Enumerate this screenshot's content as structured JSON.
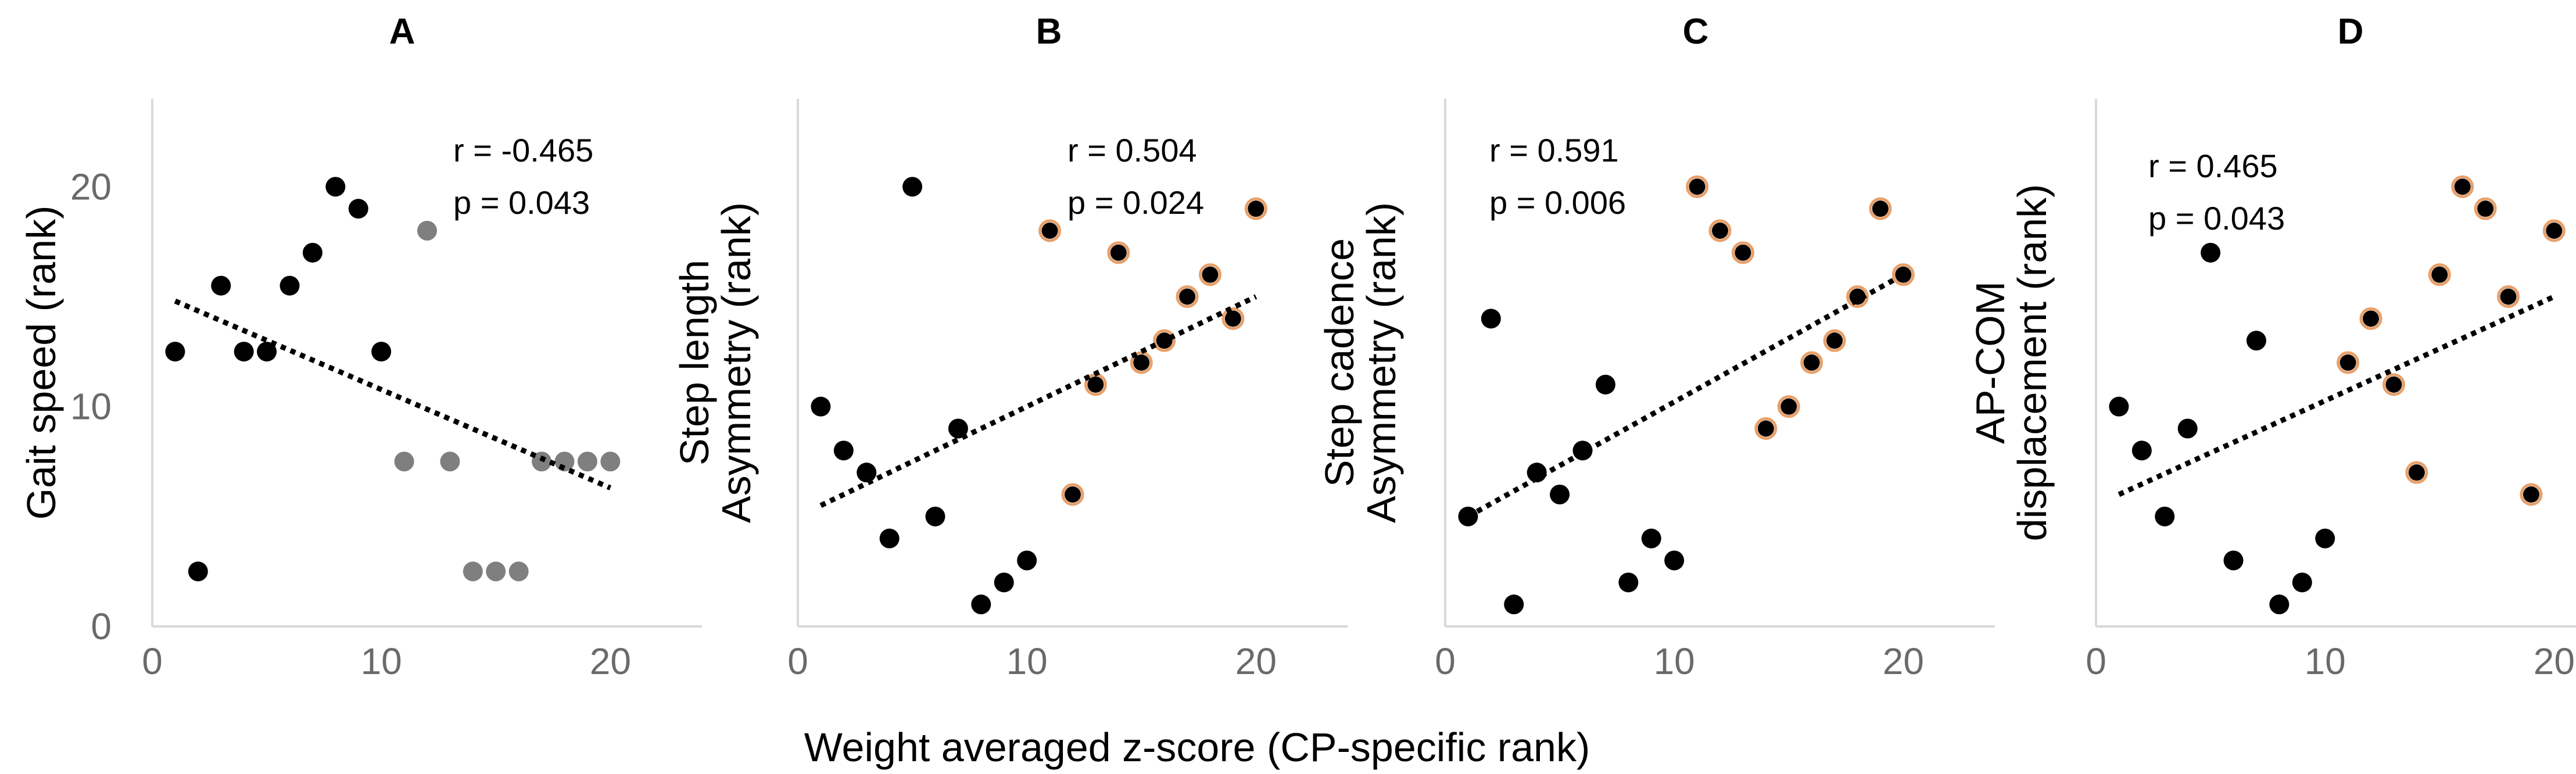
{
  "figure": {
    "shared_xlabel": "Weight averaged z-score (CP-specific rank)"
  },
  "colors": {
    "black_point": "#000000",
    "gray_point": "#7f7f7f",
    "orange_point_outline": "#e8a06a",
    "orange_point_fill": "#ffffff",
    "trendline": "#000000",
    "axis_line": "#d9d9d9",
    "tick_text": "#6a6a6a"
  },
  "chart_data": [
    {
      "type": "scatter",
      "panel_label": "A",
      "title": "",
      "ylabel_lines": [
        "Gait speed (rank)"
      ],
      "xlim": [
        0,
        24
      ],
      "ylim": [
        0,
        24
      ],
      "xticks": [
        0,
        10,
        20
      ],
      "yticks": [
        0,
        10,
        20
      ],
      "stats": [
        "r = -0.465",
        "p = 0.043"
      ],
      "trendline": {
        "x": [
          1,
          20
        ],
        "y": [
          14.8,
          6.3
        ]
      },
      "series": [
        {
          "name": "black",
          "color": "black",
          "x": [
            1,
            2,
            3,
            4,
            5,
            6,
            7,
            8,
            9,
            10
          ],
          "y": [
            12.5,
            2.5,
            15.5,
            12.5,
            12.5,
            15.5,
            17,
            20,
            19,
            12.5
          ]
        },
        {
          "name": "gray",
          "color": "gray",
          "x": [
            11,
            12,
            13,
            14,
            15,
            16,
            17,
            18,
            19,
            20
          ],
          "y": [
            7.5,
            18,
            7.5,
            2.5,
            2.5,
            2.5,
            7.5,
            7.5,
            7.5,
            7.5
          ]
        }
      ]
    },
    {
      "type": "scatter",
      "panel_label": "B",
      "title": "",
      "ylabel_lines": [
        "Step length",
        "Asymmetry (rank)"
      ],
      "xlim": [
        0,
        24
      ],
      "ylim": [
        0,
        24
      ],
      "xticks": [
        0,
        10,
        20
      ],
      "yticks": [],
      "stats": [
        "r = 0.504",
        "p = 0.024"
      ],
      "trendline": {
        "x": [
          1,
          20
        ],
        "y": [
          5.5,
          15
        ]
      },
      "series": [
        {
          "name": "black",
          "color": "black",
          "x": [
            1,
            2,
            3,
            4,
            5,
            6,
            7,
            8,
            9,
            10
          ],
          "y": [
            10,
            8,
            7,
            4,
            20,
            5,
            9,
            1,
            2,
            3
          ]
        },
        {
          "name": "orange",
          "color": "orange",
          "x": [
            11,
            12,
            13,
            14,
            15,
            16,
            17,
            18,
            19,
            20
          ],
          "y": [
            18,
            6,
            11,
            17,
            12,
            13,
            15,
            16,
            14,
            19
          ]
        }
      ]
    },
    {
      "type": "scatter",
      "panel_label": "C",
      "title": "",
      "ylabel_lines": [
        "Step cadence",
        "Asymmetry (rank)"
      ],
      "xlim": [
        0,
        24
      ],
      "ylim": [
        0,
        24
      ],
      "xticks": [
        0,
        10,
        20
      ],
      "yticks": [],
      "stats": [
        "r = 0.591",
        "p = 0.006"
      ],
      "trendline": {
        "x": [
          1,
          20
        ],
        "y": [
          5,
          16
        ]
      },
      "series": [
        {
          "name": "black",
          "color": "black",
          "x": [
            1,
            2,
            3,
            4,
            5,
            6,
            7,
            8,
            9,
            10
          ],
          "y": [
            5,
            14,
            1,
            7,
            6,
            8,
            11,
            2,
            4,
            3
          ]
        },
        {
          "name": "orange",
          "color": "orange",
          "x": [
            11,
            12,
            13,
            14,
            15,
            16,
            17,
            18,
            19,
            20
          ],
          "y": [
            20,
            18,
            17,
            9,
            10,
            12,
            13,
            15,
            19,
            16
          ]
        }
      ]
    },
    {
      "type": "scatter",
      "panel_label": "D",
      "title": "",
      "ylabel_lines": [
        "AP-COM",
        "displacement (rank)"
      ],
      "xlim": [
        0,
        24
      ],
      "ylim": [
        0,
        24
      ],
      "xticks": [
        0,
        10,
        20
      ],
      "yticks": [],
      "stats": [
        "r = 0.465",
        "p = 0.043"
      ],
      "trendline": {
        "x": [
          1,
          20
        ],
        "y": [
          6,
          15
        ]
      },
      "series": [
        {
          "name": "black",
          "color": "black",
          "x": [
            1,
            2,
            3,
            4,
            5,
            6,
            7,
            8,
            9,
            10
          ],
          "y": [
            10,
            8,
            5,
            9,
            17,
            3,
            13,
            1,
            2,
            4
          ]
        },
        {
          "name": "orange",
          "color": "orange",
          "x": [
            11,
            12,
            13,
            14,
            15,
            16,
            17,
            18,
            19,
            20
          ],
          "y": [
            12,
            14,
            11,
            7,
            16,
            20,
            19,
            15,
            6,
            18
          ]
        }
      ]
    }
  ]
}
